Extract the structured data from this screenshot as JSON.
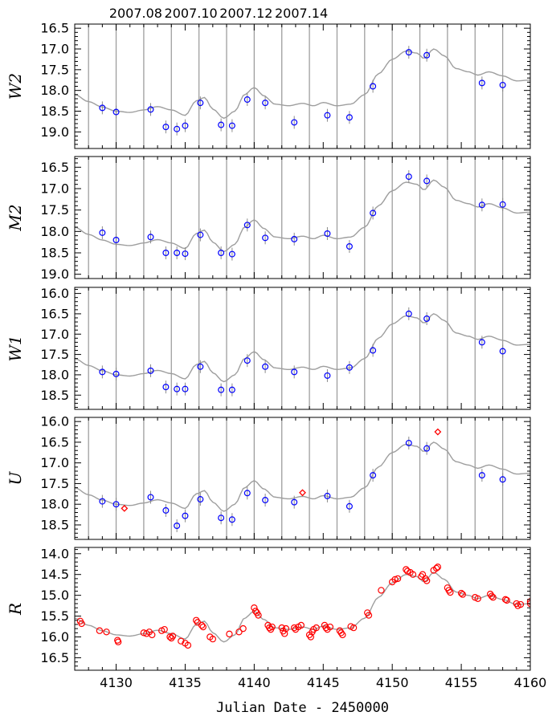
{
  "colors": {
    "frame": "#000000",
    "grid": "#9e9e9e",
    "model": "#9e9e9e",
    "swift": "#0000ff",
    "ground": "#ff0000"
  },
  "top_axis": {
    "labels": [
      "2007.08",
      "2007.10",
      "2007.12",
      "2007.14"
    ],
    "at_x": [
      4132,
      4136,
      4140,
      4144
    ]
  },
  "chart_data": [
    {
      "type": "scatter",
      "ylabel": "W2",
      "ylim_top": 16.4,
      "ylim_bottom": 19.4,
      "inverted_y": true,
      "yticks": [
        16.5,
        17.0,
        17.5,
        18.0,
        18.5,
        19.0
      ],
      "yticklabels": [
        "16.5",
        "17.0",
        "17.5",
        "18.0",
        "18.5",
        "19.0"
      ],
      "xlim": [
        4127,
        4160
      ],
      "vertical_grid_x": [
        4128,
        4130,
        4132,
        4134,
        4136,
        4138,
        4140,
        4142,
        4144,
        4146,
        4148,
        4150,
        4152,
        4154,
        4156,
        4158
      ],
      "series": [
        {
          "marker": "circle",
          "color": "#0000ff",
          "points": [
            [
              4129,
              18.42
            ],
            [
              4130,
              18.52
            ],
            [
              4132.5,
              18.46
            ],
            [
              4133.6,
              18.88
            ],
            [
              4134.4,
              18.93
            ],
            [
              4135,
              18.85
            ],
            [
              4136.1,
              18.3
            ],
            [
              4137.6,
              18.83
            ],
            [
              4138.4,
              18.85
            ],
            [
              4139.5,
              18.22
            ],
            [
              4140.8,
              18.3
            ],
            [
              4142.9,
              18.77
            ],
            [
              4145.3,
              18.6
            ],
            [
              4146.9,
              18.65
            ],
            [
              4148.6,
              17.9
            ],
            [
              4151.2,
              17.08
            ],
            [
              4152.5,
              17.15
            ],
            [
              4156.5,
              17.82
            ],
            [
              4158,
              17.87
            ]
          ]
        }
      ]
    },
    {
      "type": "scatter",
      "ylabel": "M2",
      "ylim_top": 16.25,
      "ylim_bottom": 19.1,
      "inverted_y": true,
      "yticks": [
        16.5,
        17.0,
        17.5,
        18.0,
        18.5,
        19.0
      ],
      "yticklabels": [
        "16.5",
        "17.0",
        "17.5",
        "18.0",
        "18.5",
        "19.0"
      ],
      "xlim": [
        4127,
        4160
      ],
      "vertical_grid_x": [
        4128,
        4130,
        4132,
        4134,
        4136,
        4138,
        4140,
        4142,
        4144,
        4146,
        4148,
        4150,
        4152,
        4154,
        4156,
        4158
      ],
      "series": [
        {
          "marker": "circle",
          "color": "#0000ff",
          "points": [
            [
              4129,
              18.03
            ],
            [
              4130,
              18.2
            ],
            [
              4132.5,
              18.13
            ],
            [
              4133.6,
              18.5
            ],
            [
              4134.4,
              18.5
            ],
            [
              4135,
              18.52
            ],
            [
              4136.1,
              18.08
            ],
            [
              4137.6,
              18.5
            ],
            [
              4138.4,
              18.53
            ],
            [
              4139.5,
              17.85
            ],
            [
              4140.8,
              18.15
            ],
            [
              4142.9,
              18.18
            ],
            [
              4145.3,
              18.05
            ],
            [
              4146.9,
              18.35
            ],
            [
              4148.6,
              17.57
            ],
            [
              4151.2,
              16.72
            ],
            [
              4152.5,
              16.82
            ],
            [
              4156.5,
              17.38
            ],
            [
              4158,
              17.37
            ]
          ]
        }
      ]
    },
    {
      "type": "scatter",
      "ylabel": "W1",
      "ylim_top": 15.85,
      "ylim_bottom": 18.85,
      "inverted_y": true,
      "yticks": [
        16.0,
        16.5,
        17.0,
        17.5,
        18.0,
        18.5
      ],
      "yticklabels": [
        "16.0",
        "16.5",
        "17.0",
        "17.5",
        "18.0",
        "18.5"
      ],
      "xlim": [
        4127,
        4160
      ],
      "vertical_grid_x": [
        4128,
        4130,
        4132,
        4134,
        4136,
        4138,
        4140,
        4142,
        4144,
        4146,
        4148,
        4150,
        4152,
        4154,
        4156,
        4158
      ],
      "series": [
        {
          "marker": "circle",
          "color": "#0000ff",
          "points": [
            [
              4129,
              17.93
            ],
            [
              4130,
              17.98
            ],
            [
              4132.5,
              17.9
            ],
            [
              4133.6,
              18.3
            ],
            [
              4134.4,
              18.35
            ],
            [
              4135,
              18.35
            ],
            [
              4136.1,
              17.8
            ],
            [
              4137.6,
              18.37
            ],
            [
              4138.4,
              18.37
            ],
            [
              4139.5,
              17.65
            ],
            [
              4140.8,
              17.8
            ],
            [
              4142.9,
              17.93
            ],
            [
              4145.3,
              18.02
            ],
            [
              4146.9,
              17.82
            ],
            [
              4148.6,
              17.4
            ],
            [
              4151.2,
              16.5
            ],
            [
              4152.5,
              16.62
            ],
            [
              4156.5,
              17.2
            ],
            [
              4158,
              17.42
            ]
          ]
        }
      ]
    },
    {
      "type": "scatter",
      "ylabel": "U",
      "ylim_top": 15.9,
      "ylim_bottom": 18.85,
      "inverted_y": true,
      "yticks": [
        16.0,
        16.5,
        17.0,
        17.5,
        18.0,
        18.5
      ],
      "yticklabels": [
        "16.0",
        "16.5",
        "17.0",
        "17.5",
        "18.0",
        "18.5"
      ],
      "xlim": [
        4127,
        4160
      ],
      "vertical_grid_x": [
        4128,
        4130,
        4132,
        4134,
        4136,
        4138,
        4140,
        4142,
        4144,
        4146,
        4148,
        4150,
        4152,
        4154,
        4156,
        4158
      ],
      "series": [
        {
          "marker": "circle",
          "color": "#0000ff",
          "points": [
            [
              4129,
              17.93
            ],
            [
              4130,
              18.0
            ],
            [
              4132.5,
              17.83
            ],
            [
              4133.6,
              18.15
            ],
            [
              4134.4,
              18.52
            ],
            [
              4135,
              18.28
            ],
            [
              4136.1,
              17.88
            ],
            [
              4137.6,
              18.33
            ],
            [
              4138.4,
              18.37
            ],
            [
              4139.5,
              17.73
            ],
            [
              4140.8,
              17.9
            ],
            [
              4142.9,
              17.95
            ],
            [
              4145.3,
              17.8
            ],
            [
              4146.9,
              18.05
            ],
            [
              4148.6,
              17.3
            ],
            [
              4151.2,
              16.52
            ],
            [
              4152.5,
              16.65
            ],
            [
              4156.5,
              17.3
            ],
            [
              4158,
              17.4
            ]
          ]
        },
        {
          "marker": "diamond",
          "color": "#ff0000",
          "points": [
            [
              4130.6,
              18.1
            ],
            [
              4143.5,
              17.72
            ],
            [
              4153.3,
              16.25
            ]
          ]
        }
      ]
    },
    {
      "type": "scatter",
      "ylabel": "R",
      "xlabel": "Julian Date - 2450000",
      "ylim_top": 13.85,
      "ylim_bottom": 16.8,
      "inverted_y": true,
      "yticks": [
        14.0,
        14.5,
        15.0,
        15.5,
        16.0,
        16.5
      ],
      "yticklabels": [
        "14.0",
        "14.5",
        "15.0",
        "15.5",
        "16.0",
        "16.5"
      ],
      "xlim": [
        4127,
        4160
      ],
      "xticks": [
        4130,
        4135,
        4140,
        4145,
        4150,
        4155,
        4160
      ],
      "xticklabels": [
        "4130",
        "4135",
        "4140",
        "4145",
        "4150",
        "4155",
        "4160"
      ],
      "vertical_grid_x": [],
      "series": [
        {
          "marker": "circle-open",
          "color": "#ff0000",
          "points": [
            [
              4127.4,
              15.62
            ],
            [
              4127.5,
              15.68
            ],
            [
              4128.8,
              15.85
            ],
            [
              4129.3,
              15.88
            ],
            [
              4130.1,
              16.08
            ],
            [
              4130.15,
              16.12
            ],
            [
              4132.0,
              15.9
            ],
            [
              4132.2,
              15.92
            ],
            [
              4132.4,
              15.88
            ],
            [
              4132.6,
              15.95
            ],
            [
              4133.3,
              15.85
            ],
            [
              4133.5,
              15.82
            ],
            [
              4133.9,
              16.0
            ],
            [
              4134.0,
              16.03
            ],
            [
              4134.1,
              15.98
            ],
            [
              4134.7,
              16.1
            ],
            [
              4135.0,
              16.15
            ],
            [
              4135.2,
              16.2
            ],
            [
              4135.8,
              15.6
            ],
            [
              4135.9,
              15.65
            ],
            [
              4136.2,
              15.72
            ],
            [
              4136.3,
              15.76
            ],
            [
              4136.8,
              16.0
            ],
            [
              4137.0,
              16.05
            ],
            [
              4138.2,
              15.93
            ],
            [
              4138.9,
              15.88
            ],
            [
              4139.2,
              15.8
            ],
            [
              4140.0,
              15.3
            ],
            [
              4140.1,
              15.38
            ],
            [
              4140.2,
              15.42
            ],
            [
              4140.3,
              15.48
            ],
            [
              4141.0,
              15.72
            ],
            [
              4141.1,
              15.78
            ],
            [
              4141.2,
              15.82
            ],
            [
              4141.3,
              15.76
            ],
            [
              4142.0,
              15.78
            ],
            [
              4142.1,
              15.86
            ],
            [
              4142.2,
              15.92
            ],
            [
              4142.3,
              15.8
            ],
            [
              4142.9,
              15.78
            ],
            [
              4143.0,
              15.82
            ],
            [
              4143.2,
              15.76
            ],
            [
              4143.4,
              15.72
            ],
            [
              4144.0,
              15.95
            ],
            [
              4144.1,
              16.0
            ],
            [
              4144.2,
              15.88
            ],
            [
              4144.3,
              15.82
            ],
            [
              4144.5,
              15.78
            ],
            [
              4145.1,
              15.72
            ],
            [
              4145.2,
              15.78
            ],
            [
              4145.3,
              15.82
            ],
            [
              4145.5,
              15.76
            ],
            [
              4146.2,
              15.85
            ],
            [
              4146.3,
              15.9
            ],
            [
              4146.4,
              15.95
            ],
            [
              4147.0,
              15.75
            ],
            [
              4147.2,
              15.78
            ],
            [
              4148.2,
              15.42
            ],
            [
              4148.3,
              15.48
            ],
            [
              4149.2,
              14.88
            ],
            [
              4150.0,
              14.68
            ],
            [
              4150.2,
              14.62
            ],
            [
              4150.4,
              14.6
            ],
            [
              4151.0,
              14.38
            ],
            [
              4151.1,
              14.42
            ],
            [
              4151.3,
              14.45
            ],
            [
              4151.5,
              14.5
            ],
            [
              4152.1,
              14.55
            ],
            [
              4152.2,
              14.5
            ],
            [
              4152.4,
              14.6
            ],
            [
              4152.5,
              14.65
            ],
            [
              4153.0,
              14.4
            ],
            [
              4153.2,
              14.35
            ],
            [
              4153.3,
              14.32
            ],
            [
              4154.0,
              14.82
            ],
            [
              4154.1,
              14.88
            ],
            [
              4154.2,
              14.93
            ],
            [
              4155.0,
              14.95
            ],
            [
              4155.1,
              14.98
            ],
            [
              4156.0,
              15.05
            ],
            [
              4156.2,
              15.08
            ],
            [
              4157.1,
              14.97
            ],
            [
              4157.2,
              15.02
            ],
            [
              4157.3,
              15.05
            ],
            [
              4158.2,
              15.1
            ],
            [
              4158.3,
              15.12
            ],
            [
              4159.0,
              15.2
            ],
            [
              4159.1,
              15.25
            ],
            [
              4159.3,
              15.22
            ],
            [
              4160.0,
              15.15
            ],
            [
              4160.0,
              15.2
            ]
          ]
        }
      ]
    }
  ]
}
